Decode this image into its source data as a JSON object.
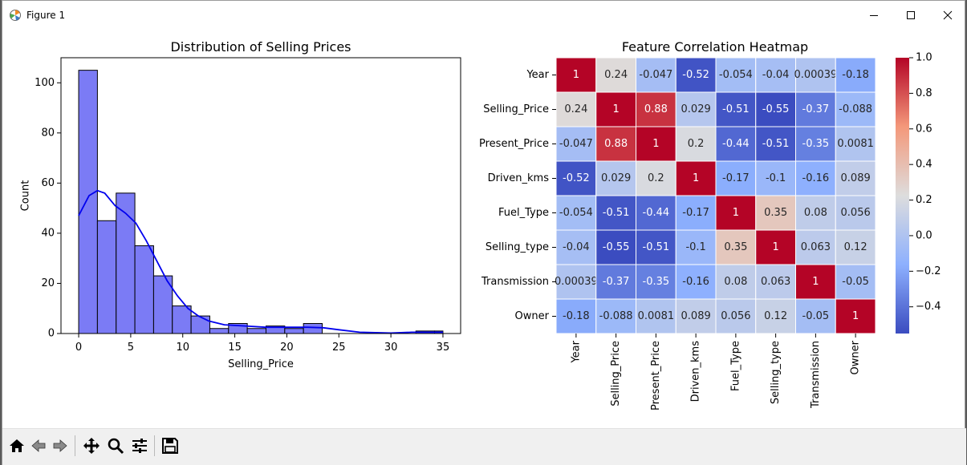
{
  "window": {
    "title": "Figure 1"
  },
  "histogram": {
    "title": "Distribution of Selling Prices",
    "xlabel": "Selling_Price",
    "ylabel": "Count",
    "xticks": [
      "0",
      "5",
      "10",
      "15",
      "20",
      "25",
      "30",
      "35"
    ],
    "yticks": [
      "0",
      "20",
      "40",
      "60",
      "80",
      "100"
    ],
    "bar_color": "#7b7bf5",
    "kde_color": "#0000ee"
  },
  "heatmap": {
    "title": "Feature Correlation Heatmap",
    "labels": [
      "Year",
      "Selling_Price",
      "Present_Price",
      "Driven_kms",
      "Fuel_Type",
      "Selling_type",
      "Transmission",
      "Owner"
    ],
    "matrix_text": [
      [
        "1",
        "0.24",
        "-0.047",
        "-0.52",
        "-0.054",
        "-0.04",
        "0.00039",
        "-0.18"
      ],
      [
        "0.24",
        "1",
        "0.88",
        "0.029",
        "-0.51",
        "-0.55",
        "-0.37",
        "-0.088"
      ],
      [
        "-0.047",
        "0.88",
        "1",
        "0.2",
        "-0.44",
        "-0.51",
        "-0.35",
        "0.0081"
      ],
      [
        "-0.52",
        "0.029",
        "0.2",
        "1",
        "-0.17",
        "-0.1",
        "-0.16",
        "0.089"
      ],
      [
        "-0.054",
        "-0.51",
        "-0.44",
        "-0.17",
        "1",
        "0.35",
        "0.08",
        "0.056"
      ],
      [
        "-0.04",
        "-0.55",
        "-0.51",
        "-0.1",
        "0.35",
        "1",
        "0.063",
        "0.12"
      ],
      [
        "0.00039",
        "-0.37",
        "-0.35",
        "-0.16",
        "0.08",
        "0.063",
        "1",
        "-0.05"
      ],
      [
        "-0.18",
        "-0.088",
        "0.0081",
        "0.089",
        "0.056",
        "0.12",
        "-0.05",
        "1"
      ]
    ],
    "colorbar_ticks": [
      "1.0",
      "0.8",
      "0.6",
      "0.4",
      "0.2",
      "0.0",
      "−0.2",
      "−0.4"
    ],
    "colormap": "coolwarm"
  },
  "chart_data": [
    {
      "type": "bar",
      "subtype": "histogram with kde",
      "title": "Distribution of Selling Prices",
      "xlabel": "Selling_Price",
      "ylabel": "Count",
      "xlim": [
        -1.7,
        36.7
      ],
      "ylim": [
        0,
        110
      ],
      "bin_edges": [
        0,
        1.8,
        3.6,
        5.4,
        7.2,
        9.0,
        10.8,
        12.6,
        14.4,
        16.2,
        18.0,
        19.8,
        21.6,
        23.4,
        25.2,
        27.0,
        28.8,
        30.6,
        32.4,
        34.2,
        35.0
      ],
      "values": [
        105,
        45,
        56,
        35,
        23,
        11,
        7,
        2,
        4,
        2,
        3,
        2,
        4,
        0,
        0,
        0,
        0,
        0,
        1,
        1
      ],
      "kde_x": [
        0,
        1,
        1.8,
        2.5,
        3.5,
        4.5,
        5.5,
        6.5,
        7.5,
        8.5,
        9.5,
        10.5,
        11.5,
        12.5,
        14,
        16,
        18,
        20,
        22,
        23.5,
        25,
        27,
        30,
        32,
        35
      ],
      "kde_y": [
        47,
        55,
        57,
        56,
        51,
        48,
        44,
        37,
        29,
        21,
        15,
        10,
        7,
        5,
        3.5,
        3,
        2.5,
        2.5,
        2.5,
        2.3,
        1.5,
        0.5,
        0.2,
        0.5,
        0.5
      ]
    },
    {
      "type": "heatmap",
      "title": "Feature Correlation Heatmap",
      "x_categories": [
        "Year",
        "Selling_Price",
        "Present_Price",
        "Driven_kms",
        "Fuel_Type",
        "Selling_type",
        "Transmission",
        "Owner"
      ],
      "y_categories": [
        "Year",
        "Selling_Price",
        "Present_Price",
        "Driven_kms",
        "Fuel_Type",
        "Selling_type",
        "Transmission",
        "Owner"
      ],
      "values": [
        [
          1,
          0.24,
          -0.047,
          -0.52,
          -0.054,
          -0.04,
          0.00039,
          -0.18
        ],
        [
          0.24,
          1,
          0.88,
          0.029,
          -0.51,
          -0.55,
          -0.37,
          -0.088
        ],
        [
          -0.047,
          0.88,
          1,
          0.2,
          -0.44,
          -0.51,
          -0.35,
          0.0081
        ],
        [
          -0.52,
          0.029,
          0.2,
          1,
          -0.17,
          -0.1,
          -0.16,
          0.089
        ],
        [
          -0.054,
          -0.51,
          -0.44,
          -0.17,
          1,
          0.35,
          0.08,
          0.056
        ],
        [
          -0.04,
          -0.55,
          -0.51,
          -0.1,
          0.35,
          1,
          0.063,
          0.12
        ],
        [
          0.00039,
          -0.37,
          -0.35,
          -0.16,
          0.08,
          0.063,
          1,
          -0.05
        ],
        [
          -0.18,
          -0.088,
          0.0081,
          0.089,
          0.056,
          0.12,
          -0.05,
          1
        ]
      ],
      "vmin": -0.55,
      "vmax": 1.0
    }
  ]
}
